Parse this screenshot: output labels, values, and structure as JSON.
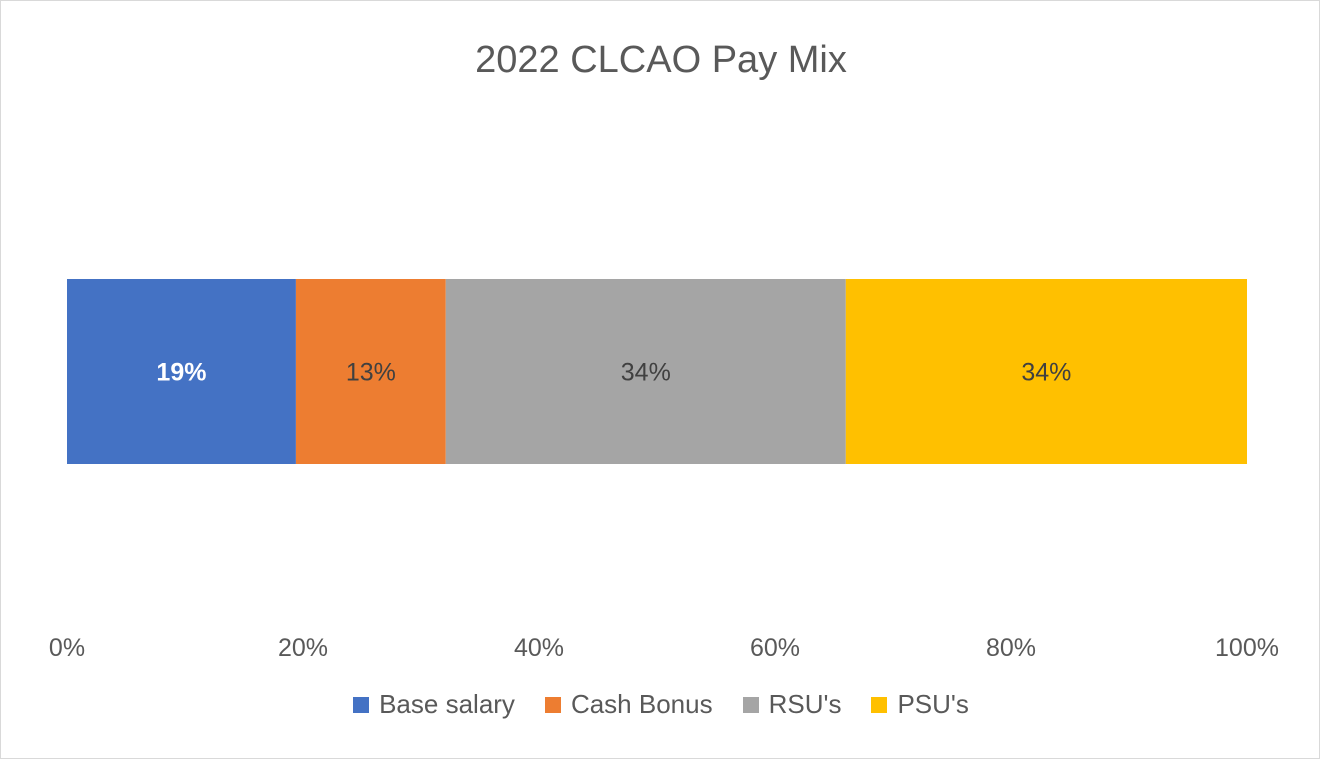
{
  "chart_data": {
    "type": "bar",
    "orientation": "horizontal",
    "stacked": true,
    "title": "2022 CLCAO Pay Mix",
    "xlabel": "",
    "ylabel": "",
    "xlim": [
      0,
      100
    ],
    "x_ticks": [
      "0%",
      "20%",
      "40%",
      "60%",
      "80%",
      "100%"
    ],
    "grid": false,
    "legend": "bottom",
    "series": [
      {
        "name": "Base salary",
        "value": 19.4,
        "label": "19%",
        "color": "#4472C4",
        "label_color": "#ffffff",
        "label_bold": true
      },
      {
        "name": "Cash Bonus",
        "value": 12.7,
        "label": "13%",
        "color": "#ED7D31",
        "label_color": "#404040",
        "label_bold": false
      },
      {
        "name": "RSU's",
        "value": 33.9,
        "label": "34%",
        "color": "#A5A5A5",
        "label_color": "#404040",
        "label_bold": false
      },
      {
        "name": "PSU's",
        "value": 34.0,
        "label": "34%",
        "color": "#FFC000",
        "label_color": "#404040",
        "label_bold": false
      }
    ]
  }
}
